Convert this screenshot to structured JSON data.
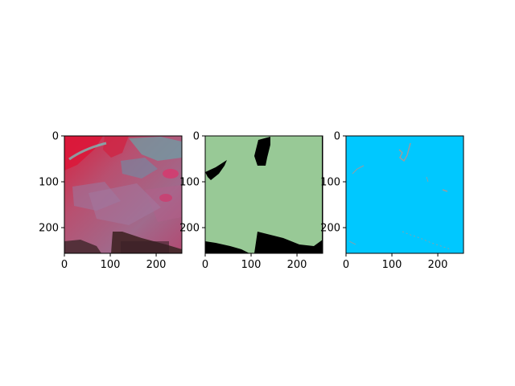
{
  "panels": [
    {
      "name": "false-color-satellite-image",
      "content": "false-color satellite image",
      "xticks": [
        "0",
        "100",
        "200"
      ],
      "yticks": [
        "0",
        "100",
        "200"
      ]
    },
    {
      "name": "segmentation-mask",
      "content": "binary mask",
      "xticks": [
        "0",
        "100",
        "200"
      ],
      "yticks": [
        "0",
        "100",
        "200"
      ]
    },
    {
      "name": "edge-map",
      "content": "edge map",
      "xticks": [
        "0",
        "100",
        "200"
      ],
      "yticks": [
        "0",
        "100",
        "200"
      ]
    }
  ],
  "colors": {
    "mask_field": "#98c996",
    "mask_background": "#000000",
    "edge_background": "#00c8ff",
    "edge_lines": "#9a9ca0",
    "image_magenta": "#c8405e",
    "image_red": "#d81e3c",
    "image_cyan": "#5fa8a8"
  }
}
